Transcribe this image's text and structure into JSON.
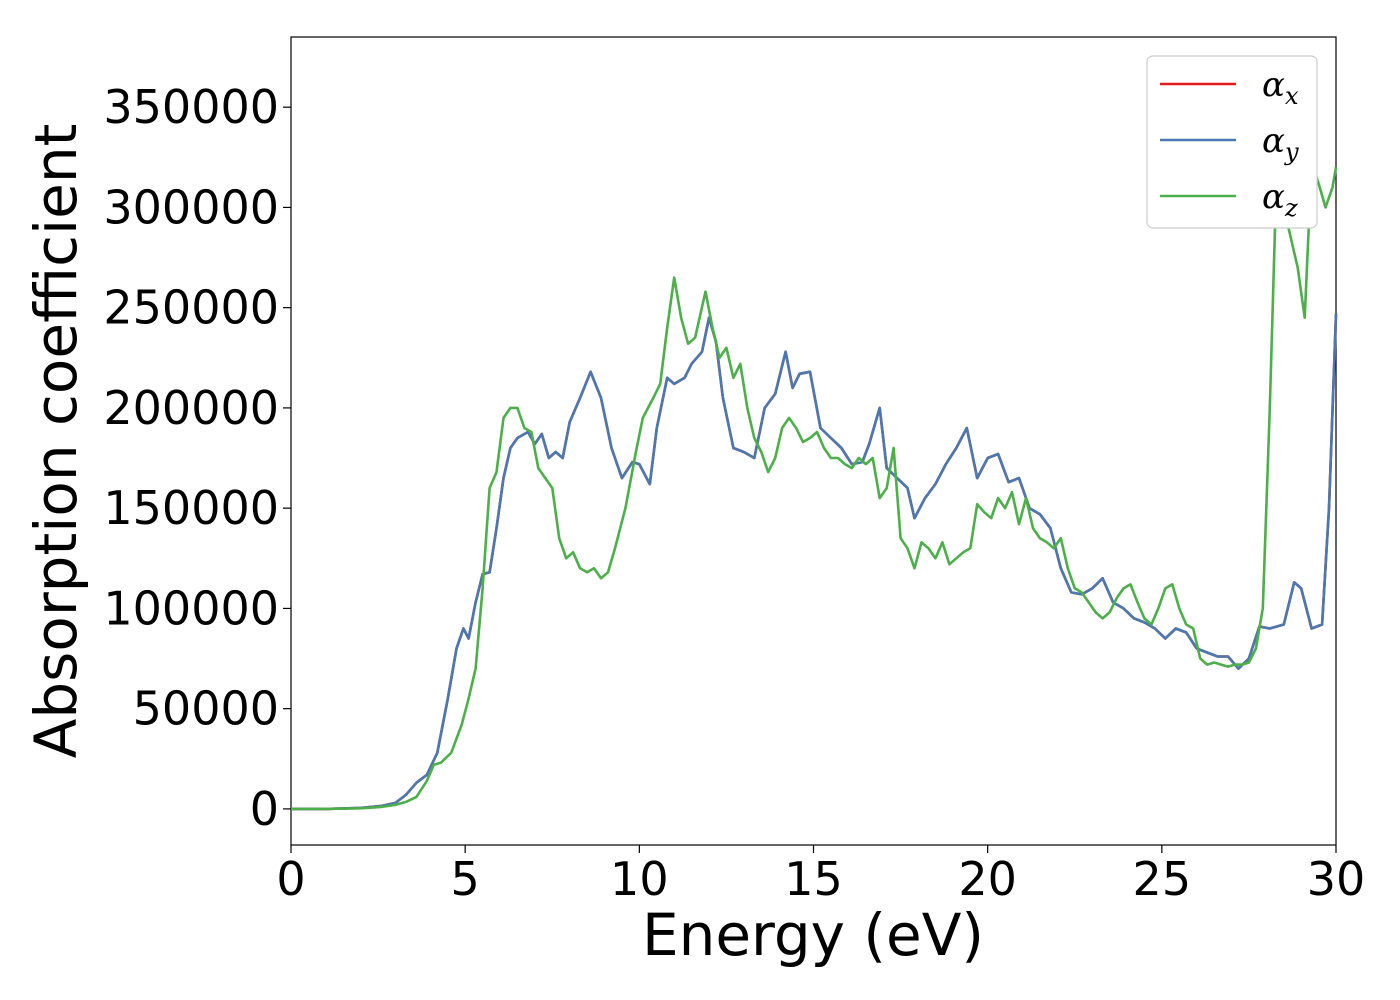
{
  "chart_data": {
    "type": "line",
    "xlabel": "Energy (eV)",
    "ylabel": "Absorption coefficient",
    "xlim": [
      0,
      30
    ],
    "ylim": [
      -18000,
      385000
    ],
    "x_ticks": [
      0,
      5,
      10,
      15,
      20,
      25,
      30
    ],
    "x_tick_labels": [
      "0",
      "5",
      "10",
      "15",
      "20",
      "25",
      "30"
    ],
    "y_ticks": [
      0,
      50000,
      100000,
      150000,
      200000,
      250000,
      300000,
      350000
    ],
    "y_tick_labels": [
      "0",
      "50000",
      "100000",
      "150000",
      "200000",
      "250000",
      "300000",
      "350000"
    ],
    "grid": false,
    "legend_position": "top-right",
    "series": [
      {
        "name": "α",
        "sub": "x",
        "color": "#e41a1c",
        "x": [
          0,
          1,
          2,
          2.6,
          3,
          3.3,
          3.6,
          3.9,
          4.2,
          4.5,
          4.75,
          4.95,
          5.1,
          5.3,
          5.5,
          5.7,
          5.9,
          6.1,
          6.3,
          6.5,
          6.8,
          7.0,
          7.2,
          7.4,
          7.6,
          7.8,
          8.0,
          8.3,
          8.6,
          8.9,
          9.2,
          9.5,
          9.8,
          10.0,
          10.3,
          10.5,
          10.8,
          11.0,
          11.3,
          11.5,
          11.8,
          12.0,
          12.2,
          12.4,
          12.7,
          13.0,
          13.3,
          13.6,
          13.9,
          14.2,
          14.4,
          14.6,
          14.9,
          15.2,
          15.5,
          15.8,
          16.1,
          16.4,
          16.6,
          16.9,
          17.1,
          17.4,
          17.7,
          17.9,
          18.2,
          18.5,
          18.8,
          19.1,
          19.4,
          19.7,
          20.0,
          20.3,
          20.6,
          20.9,
          21.2,
          21.5,
          21.8,
          22.1,
          22.4,
          22.7,
          23.0,
          23.3,
          23.6,
          23.9,
          24.2,
          24.5,
          24.8,
          25.1,
          25.4,
          25.7,
          26.0,
          26.3,
          26.6,
          26.9,
          27.2,
          27.5,
          27.8,
          28.1,
          28.5,
          28.8,
          29.0,
          29.3,
          29.6,
          29.8,
          30.0
        ],
        "values": [
          0,
          0,
          500,
          1500,
          3000,
          7000,
          13000,
          17000,
          28000,
          55000,
          80000,
          90000,
          85000,
          103000,
          117000,
          118000,
          140000,
          165000,
          180000,
          185000,
          188000,
          182000,
          187000,
          175000,
          178000,
          175000,
          193000,
          205000,
          218000,
          205000,
          180000,
          165000,
          173000,
          172000,
          162000,
          190000,
          215000,
          212000,
          215000,
          222000,
          228000,
          245000,
          233000,
          205000,
          180000,
          178000,
          175000,
          200000,
          207000,
          228000,
          210000,
          217000,
          218000,
          190000,
          185000,
          180000,
          172000,
          173000,
          182000,
          200000,
          170000,
          165000,
          160000,
          145000,
          155000,
          162000,
          172000,
          180000,
          190000,
          165000,
          175000,
          177000,
          163000,
          165000,
          150000,
          147000,
          140000,
          120000,
          108000,
          107000,
          110000,
          115000,
          103000,
          100000,
          95000,
          93000,
          90000,
          85000,
          90000,
          88000,
          80000,
          78000,
          76000,
          76000,
          70000,
          75000,
          91000,
          90000,
          92000,
          113000,
          110000,
          90000,
          92000,
          150000,
          247000
        ]
      },
      {
        "name": "α",
        "sub": "y",
        "color": "#4a78b0",
        "x": [
          0,
          1,
          2,
          2.6,
          3,
          3.3,
          3.6,
          3.9,
          4.2,
          4.5,
          4.75,
          4.95,
          5.1,
          5.3,
          5.5,
          5.7,
          5.9,
          6.1,
          6.3,
          6.5,
          6.8,
          7.0,
          7.2,
          7.4,
          7.6,
          7.8,
          8.0,
          8.3,
          8.6,
          8.9,
          9.2,
          9.5,
          9.8,
          10.0,
          10.3,
          10.5,
          10.8,
          11.0,
          11.3,
          11.5,
          11.8,
          12.0,
          12.2,
          12.4,
          12.7,
          13.0,
          13.3,
          13.6,
          13.9,
          14.2,
          14.4,
          14.6,
          14.9,
          15.2,
          15.5,
          15.8,
          16.1,
          16.4,
          16.6,
          16.9,
          17.1,
          17.4,
          17.7,
          17.9,
          18.2,
          18.5,
          18.8,
          19.1,
          19.4,
          19.7,
          20.0,
          20.3,
          20.6,
          20.9,
          21.2,
          21.5,
          21.8,
          22.1,
          22.4,
          22.7,
          23.0,
          23.3,
          23.6,
          23.9,
          24.2,
          24.5,
          24.8,
          25.1,
          25.4,
          25.7,
          26.0,
          26.3,
          26.6,
          26.9,
          27.2,
          27.5,
          27.8,
          28.1,
          28.5,
          28.8,
          29.0,
          29.3,
          29.6,
          29.8,
          30.0
        ],
        "values": [
          0,
          0,
          500,
          1500,
          3000,
          7000,
          13000,
          17000,
          28000,
          55000,
          80000,
          90000,
          85000,
          103000,
          117000,
          118000,
          140000,
          165000,
          180000,
          185000,
          188000,
          182000,
          187000,
          175000,
          178000,
          175000,
          193000,
          205000,
          218000,
          205000,
          180000,
          165000,
          173000,
          172000,
          162000,
          190000,
          215000,
          212000,
          215000,
          222000,
          228000,
          245000,
          233000,
          205000,
          180000,
          178000,
          175000,
          200000,
          207000,
          228000,
          210000,
          217000,
          218000,
          190000,
          185000,
          180000,
          172000,
          173000,
          182000,
          200000,
          170000,
          165000,
          160000,
          145000,
          155000,
          162000,
          172000,
          180000,
          190000,
          165000,
          175000,
          177000,
          163000,
          165000,
          150000,
          147000,
          140000,
          120000,
          108000,
          107000,
          110000,
          115000,
          103000,
          100000,
          95000,
          93000,
          90000,
          85000,
          90000,
          88000,
          80000,
          78000,
          76000,
          76000,
          70000,
          75000,
          91000,
          90000,
          92000,
          113000,
          110000,
          90000,
          92000,
          150000,
          247000
        ]
      },
      {
        "name": "α",
        "sub": "z",
        "color": "#4daf4a",
        "x": [
          0,
          1,
          2,
          2.6,
          3,
          3.3,
          3.6,
          3.9,
          4.1,
          4.3,
          4.6,
          4.9,
          5.1,
          5.3,
          5.5,
          5.7,
          5.9,
          6.1,
          6.3,
          6.5,
          6.7,
          6.9,
          7.1,
          7.3,
          7.5,
          7.7,
          7.9,
          8.1,
          8.3,
          8.5,
          8.7,
          8.9,
          9.1,
          9.3,
          9.6,
          9.9,
          10.1,
          10.4,
          10.6,
          10.8,
          11.0,
          11.2,
          11.4,
          11.6,
          11.9,
          12.1,
          12.3,
          12.5,
          12.7,
          12.9,
          13.1,
          13.3,
          13.5,
          13.7,
          13.9,
          14.1,
          14.3,
          14.5,
          14.7,
          14.9,
          15.1,
          15.3,
          15.5,
          15.7,
          15.9,
          16.1,
          16.3,
          16.5,
          16.7,
          16.9,
          17.1,
          17.3,
          17.5,
          17.7,
          17.9,
          18.1,
          18.3,
          18.5,
          18.7,
          18.9,
          19.1,
          19.3,
          19.5,
          19.7,
          19.9,
          20.1,
          20.3,
          20.5,
          20.7,
          20.9,
          21.1,
          21.3,
          21.5,
          21.7,
          21.9,
          22.1,
          22.3,
          22.5,
          22.7,
          22.9,
          23.1,
          23.3,
          23.5,
          23.7,
          23.9,
          24.1,
          24.3,
          24.5,
          24.7,
          24.9,
          25.1,
          25.3,
          25.5,
          25.7,
          25.9,
          26.1,
          26.3,
          26.5,
          26.7,
          26.9,
          27.1,
          27.3,
          27.5,
          27.7,
          27.9,
          28.1,
          28.3,
          28.5,
          28.7,
          28.9,
          29.1,
          29.3,
          29.5,
          29.7,
          29.9,
          30.0
        ],
        "values": [
          0,
          0,
          300,
          1000,
          2000,
          3500,
          6000,
          14000,
          22000,
          23000,
          28000,
          42000,
          55000,
          70000,
          110000,
          160000,
          168000,
          195000,
          200000,
          200000,
          190000,
          188000,
          170000,
          165000,
          160000,
          135000,
          125000,
          128000,
          120000,
          118000,
          120000,
          115000,
          118000,
          130000,
          150000,
          178000,
          195000,
          205000,
          212000,
          240000,
          265000,
          245000,
          232000,
          235000,
          258000,
          240000,
          225000,
          230000,
          215000,
          222000,
          200000,
          185000,
          178000,
          168000,
          175000,
          190000,
          195000,
          190000,
          183000,
          185000,
          188000,
          180000,
          175000,
          175000,
          172000,
          170000,
          175000,
          172000,
          175000,
          155000,
          160000,
          180000,
          135000,
          130000,
          120000,
          133000,
          130000,
          125000,
          133000,
          122000,
          125000,
          128000,
          130000,
          152000,
          148000,
          145000,
          155000,
          150000,
          158000,
          142000,
          155000,
          140000,
          135000,
          133000,
          130000,
          135000,
          120000,
          110000,
          108000,
          103000,
          98000,
          95000,
          98000,
          105000,
          110000,
          112000,
          103000,
          95000,
          92000,
          100000,
          110000,
          112000,
          100000,
          92000,
          90000,
          75000,
          72000,
          73000,
          72000,
          71000,
          72000,
          72000,
          73000,
          80000,
          100000,
          200000,
          321000,
          300000,
          285000,
          270000,
          245000,
          322000,
          312000,
          300000,
          310000,
          320000
        ],
        "note_trim": 0
      }
    ]
  }
}
